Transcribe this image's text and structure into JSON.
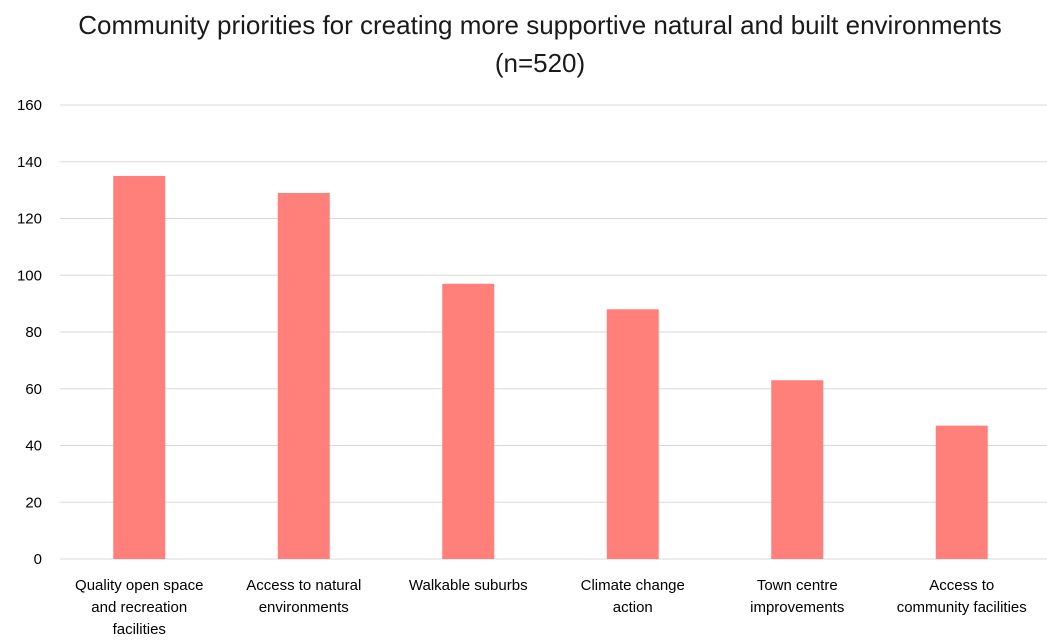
{
  "chart_data": {
    "type": "bar",
    "title": "Community priorities for creating more supportive natural and built environments (n=520)",
    "categories": [
      [
        "Quality open space",
        "and recreation",
        "facilities"
      ],
      [
        "Access to natural",
        "environments"
      ],
      [
        "Walkable suburbs"
      ],
      [
        "Climate change",
        "action"
      ],
      [
        "Town centre",
        "improvements"
      ],
      [
        "Access to",
        "community facilities"
      ]
    ],
    "values": [
      135,
      129,
      97,
      88,
      63,
      47
    ],
    "xlabel": "",
    "ylabel": "",
    "ylim": [
      0,
      160
    ],
    "yticks": [
      0,
      20,
      40,
      60,
      80,
      100,
      120,
      140,
      160
    ],
    "bar_color": "#ff7f7a",
    "grid": true,
    "legend": "none"
  }
}
